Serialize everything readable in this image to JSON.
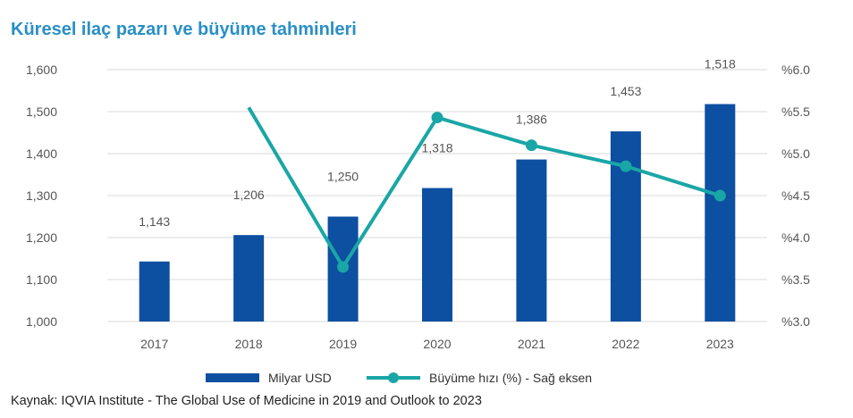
{
  "title": "Küresel ilaç pazarı ve büyüme tahminleri",
  "source": "Kaynak: IQVIA Institute - The Global Use of Medicine in 2019 and Outlook to 2023",
  "colors": {
    "bar": "#0d4fa0",
    "line": "#1aa6a6",
    "title": "#2a8fc6",
    "grid": "#d9d9d9"
  },
  "chart_data": {
    "type": "bar",
    "categories": [
      "2017",
      "2018",
      "2019",
      "2020",
      "2021",
      "2022",
      "2023"
    ],
    "series": [
      {
        "name": "Milyar USD",
        "type": "bar",
        "axis": "left",
        "values": [
          1143,
          1206,
          1250,
          1318,
          1386,
          1453,
          1518
        ],
        "labels": [
          "1,143",
          "1,206",
          "1,250",
          "1,318",
          "1,386",
          "1,453",
          "1,518"
        ]
      },
      {
        "name": "Büyüme hızı (%) - Sağ eksen",
        "type": "line",
        "axis": "right",
        "values": [
          null,
          5.55,
          3.65,
          5.43,
          5.1,
          4.85,
          4.5
        ]
      }
    ],
    "ylim": [
      1000,
      1600
    ],
    "y_ticks": [
      "1,000",
      "1,100",
      "1,200",
      "1,300",
      "1,400",
      "1,500",
      "1,600"
    ],
    "y2lim": [
      3.0,
      6.0
    ],
    "y2_ticks": [
      "%3.0",
      "%3.5",
      "%4.0",
      "%4.5",
      "%5.0",
      "%5.5",
      "%6.0"
    ],
    "grid": true,
    "legend": "bottom"
  }
}
